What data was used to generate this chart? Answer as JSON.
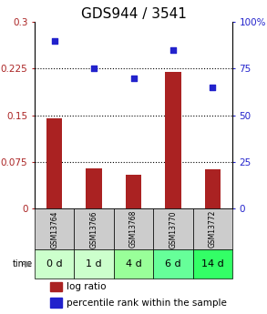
{
  "title": "GDS944 / 3541",
  "samples": [
    "GSM13764",
    "GSM13766",
    "GSM13768",
    "GSM13770",
    "GSM13772"
  ],
  "time_labels": [
    "0 d",
    "1 d",
    "4 d",
    "6 d",
    "14 d"
  ],
  "log_ratio": [
    0.145,
    0.065,
    0.055,
    0.22,
    0.063
  ],
  "percentile_rank": [
    90,
    75,
    70,
    85,
    65
  ],
  "bar_color": "#aa2222",
  "dot_color": "#2222cc",
  "ylim_left": [
    0,
    0.3
  ],
  "ylim_right": [
    0,
    100
  ],
  "yticks_left": [
    0,
    0.075,
    0.15,
    0.225,
    0.3
  ],
  "ytick_labels_left": [
    "0",
    "0.075",
    "0.15",
    "0.225",
    "0.3"
  ],
  "yticks_right": [
    0,
    25,
    50,
    75,
    100
  ],
  "ytick_labels_right": [
    "0",
    "25",
    "50",
    "75",
    "100%"
  ],
  "hlines": [
    0.075,
    0.15,
    0.225
  ],
  "sample_bg": "#cccccc",
  "time_bg_colors": [
    "#ccffcc",
    "#ccffcc",
    "#99ff99",
    "#66ff99",
    "#33ff66"
  ],
  "bar_width": 0.4,
  "title_fontsize": 11,
  "tick_fontsize": 7.5,
  "label_fontsize": 7.5,
  "time_fontsize": 8
}
